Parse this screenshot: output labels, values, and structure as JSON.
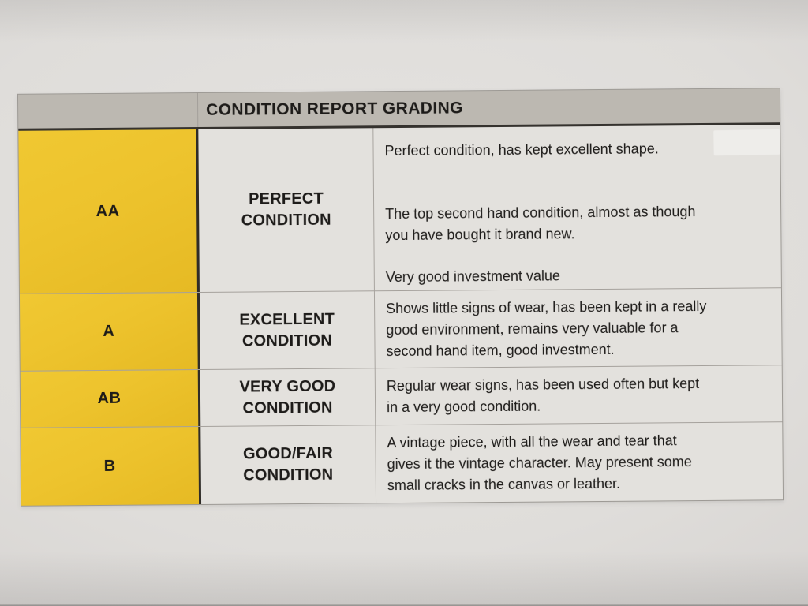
{
  "document": {
    "header": {
      "title": "CONDITION REPORT GRADING"
    },
    "colors": {
      "grade_column_yellow": "#edc32d",
      "header_bar_gray": "#bcb8b1",
      "cell_background": "#e3e1dd",
      "text": "#1d1b19"
    },
    "rows": [
      {
        "grade": "AA",
        "condition": "PERFECT\nCONDITION",
        "paragraphs": [
          "Perfect condition, has kept excellent shape.",
          "The top second hand condition, almost as though\nyou have bought it brand new.",
          "Very good investment value"
        ]
      },
      {
        "grade": "A",
        "condition": "EXCELLENT\nCONDITION",
        "paragraphs": [
          "Shows little signs of wear, has been kept in a really\ngood environment, remains very valuable for a\nsecond hand item, good investment."
        ]
      },
      {
        "grade": "AB",
        "condition": "VERY GOOD\nCONDITION",
        "paragraphs": [
          "Regular wear signs, has been used often but kept\nin a very good condition."
        ]
      },
      {
        "grade": "B",
        "condition": "GOOD/FAIR\nCONDITION",
        "paragraphs": [
          "A vintage piece, with all the wear and tear that\ngives it the vintage character. May present some\nsmall cracks in the canvas or leather."
        ]
      }
    ]
  }
}
